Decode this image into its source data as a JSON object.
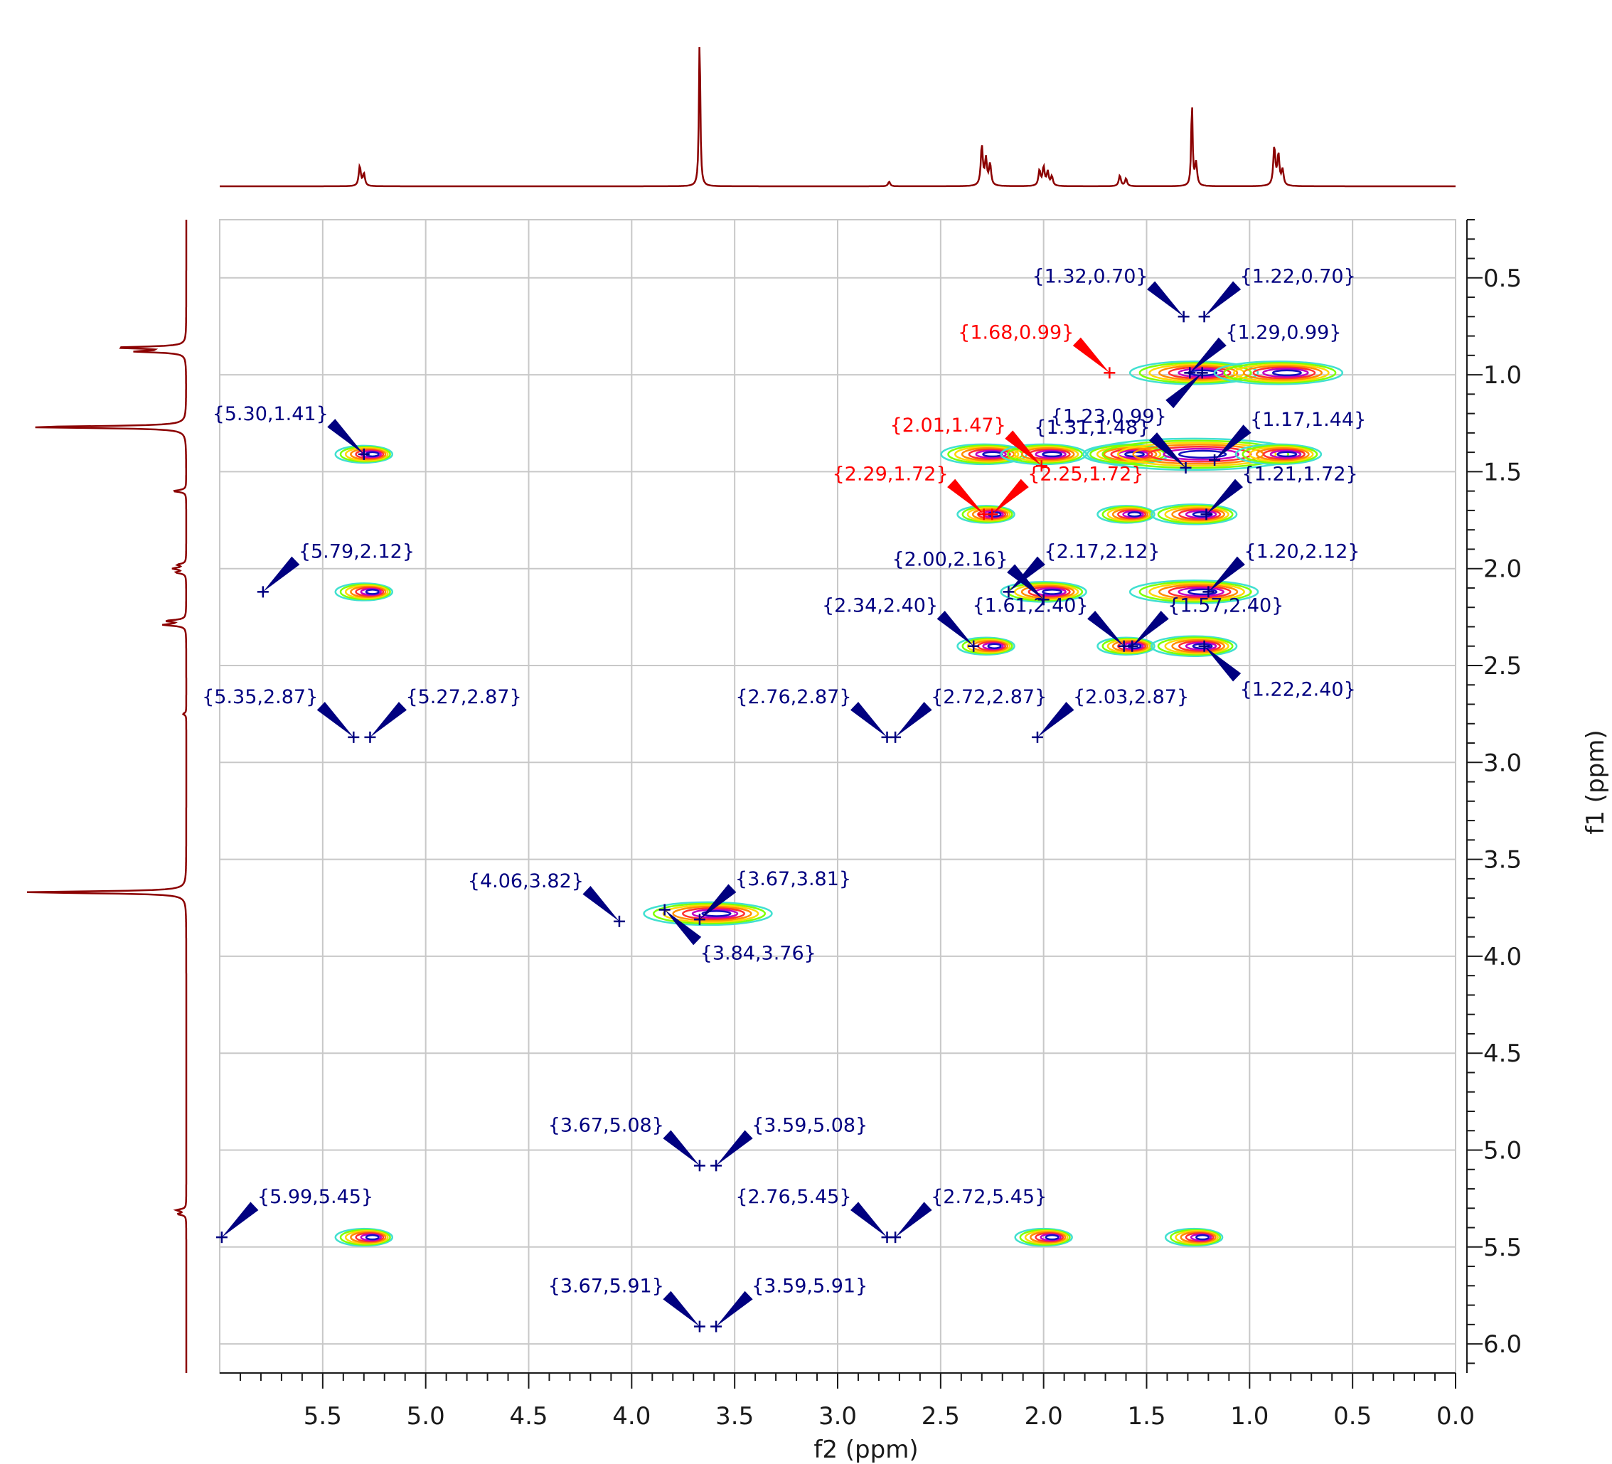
{
  "chart_data": {
    "type": "scatter",
    "subtype": "2D NMR contour plot",
    "xlabel": "f2 (ppm)",
    "ylabel": "f1 (ppm)",
    "xlim": [
      6.0,
      0.0
    ],
    "ylim": [
      0.2,
      6.15
    ],
    "x_ticks": [
      "5.5",
      "5.0",
      "4.5",
      "4.0",
      "3.5",
      "3.0",
      "2.5",
      "2.0",
      "1.5",
      "1.0",
      "0.5",
      "0.0"
    ],
    "y_ticks": [
      "0.5",
      "1.0",
      "1.5",
      "2.0",
      "2.5",
      "3.0",
      "3.5",
      "4.0",
      "4.5",
      "5.0",
      "5.5",
      "6.0"
    ],
    "grid": true,
    "colors": {
      "label_blue": "#000080",
      "label_red": "#ff0000",
      "projection": "#8b0000",
      "grid": "#c8c8c8"
    },
    "peak_labels": [
      {
        "label": "{1.32,0.70}",
        "x": 1.32,
        "y": 0.7,
        "color": "blue"
      },
      {
        "label": "{1.22,0.70}",
        "x": 1.22,
        "y": 0.7,
        "color": "blue"
      },
      {
        "label": "{1.68,0.99}",
        "x": 1.68,
        "y": 0.99,
        "color": "red"
      },
      {
        "label": "{1.29,0.99}",
        "x": 1.29,
        "y": 0.99,
        "color": "blue"
      },
      {
        "label": "{1.23,0.99}",
        "x": 1.23,
        "y": 0.99,
        "color": "blue"
      },
      {
        "label": "{5.30,1.41}",
        "x": 5.3,
        "y": 1.41,
        "color": "blue"
      },
      {
        "label": "{2.01,1.47}",
        "x": 2.01,
        "y": 1.47,
        "color": "red"
      },
      {
        "label": "{1.31,1.48}",
        "x": 1.31,
        "y": 1.48,
        "color": "blue"
      },
      {
        "label": "{1.17,1.44}",
        "x": 1.17,
        "y": 1.44,
        "color": "blue"
      },
      {
        "label": "{2.29,1.72}",
        "x": 2.29,
        "y": 1.72,
        "color": "red"
      },
      {
        "label": "{2.25,1.72}",
        "x": 2.25,
        "y": 1.72,
        "color": "red"
      },
      {
        "label": "{1.21,1.72}",
        "x": 1.21,
        "y": 1.72,
        "color": "blue"
      },
      {
        "label": "{5.79,2.12}",
        "x": 5.79,
        "y": 2.12,
        "color": "blue"
      },
      {
        "label": "{2.00,2.16}",
        "x": 2.0,
        "y": 2.16,
        "color": "blue"
      },
      {
        "label": "{2.17,2.12}",
        "x": 2.17,
        "y": 2.12,
        "color": "blue"
      },
      {
        "label": "{1.20,2.12}",
        "x": 1.2,
        "y": 2.12,
        "color": "blue"
      },
      {
        "label": "{2.34,2.40}",
        "x": 2.34,
        "y": 2.4,
        "color": "blue"
      },
      {
        "label": "{1.61,2.40}",
        "x": 1.61,
        "y": 2.4,
        "color": "blue"
      },
      {
        "label": "{1.57,2.40}",
        "x": 1.57,
        "y": 2.4,
        "color": "blue"
      },
      {
        "label": "{1.22,2.40}",
        "x": 1.22,
        "y": 2.4,
        "color": "blue"
      },
      {
        "label": "{5.35,2.87}",
        "x": 5.35,
        "y": 2.87,
        "color": "blue"
      },
      {
        "label": "{5.27,2.87}",
        "x": 5.27,
        "y": 2.87,
        "color": "blue"
      },
      {
        "label": "{2.76,2.87}",
        "x": 2.76,
        "y": 2.87,
        "color": "blue"
      },
      {
        "label": "{2.72,2.87}",
        "x": 2.72,
        "y": 2.87,
        "color": "blue"
      },
      {
        "label": "{2.03,2.87}",
        "x": 2.03,
        "y": 2.87,
        "color": "blue"
      },
      {
        "label": "{4.06,3.82}",
        "x": 4.06,
        "y": 3.82,
        "color": "blue"
      },
      {
        "label": "{3.67,3.81}",
        "x": 3.67,
        "y": 3.81,
        "color": "blue"
      },
      {
        "label": "{3.84,3.76}",
        "x": 3.84,
        "y": 3.76,
        "color": "blue"
      },
      {
        "label": "{3.67,5.08}",
        "x": 3.67,
        "y": 5.08,
        "color": "blue"
      },
      {
        "label": "{3.59,5.08}",
        "x": 3.59,
        "y": 5.08,
        "color": "blue"
      },
      {
        "label": "{5.99,5.45}",
        "x": 5.99,
        "y": 5.45,
        "color": "blue"
      },
      {
        "label": "{2.76,5.45}",
        "x": 2.76,
        "y": 5.45,
        "color": "blue"
      },
      {
        "label": "{2.72,5.45}",
        "x": 2.72,
        "y": 5.45,
        "color": "blue"
      },
      {
        "label": "{3.67,5.91}",
        "x": 3.67,
        "y": 5.91,
        "color": "blue"
      },
      {
        "label": "{3.59,5.91}",
        "x": 3.59,
        "y": 5.91,
        "color": "blue"
      }
    ],
    "contours": [
      {
        "x": 1.27,
        "y": 0.99,
        "size": "large"
      },
      {
        "x": 0.86,
        "y": 0.99,
        "size": "large"
      },
      {
        "x": 5.3,
        "y": 1.41,
        "size": "small"
      },
      {
        "x": 2.29,
        "y": 1.41,
        "size": "medium"
      },
      {
        "x": 2.0,
        "y": 1.41,
        "size": "medium"
      },
      {
        "x": 1.6,
        "y": 1.41,
        "size": "medium"
      },
      {
        "x": 1.27,
        "y": 1.41,
        "size": "xlarge"
      },
      {
        "x": 0.86,
        "y": 1.41,
        "size": "medium"
      },
      {
        "x": 2.28,
        "y": 1.72,
        "size": "small"
      },
      {
        "x": 1.6,
        "y": 1.72,
        "size": "small"
      },
      {
        "x": 1.27,
        "y": 1.72,
        "size": "medium"
      },
      {
        "x": 5.3,
        "y": 2.12,
        "size": "small"
      },
      {
        "x": 2.0,
        "y": 2.12,
        "size": "medium"
      },
      {
        "x": 1.27,
        "y": 2.12,
        "size": "large"
      },
      {
        "x": 2.28,
        "y": 2.4,
        "size": "small"
      },
      {
        "x": 1.6,
        "y": 2.4,
        "size": "small"
      },
      {
        "x": 1.27,
        "y": 2.4,
        "size": "medium"
      },
      {
        "x": 3.63,
        "y": 3.78,
        "size": "large"
      },
      {
        "x": 5.3,
        "y": 5.45,
        "size": "small"
      },
      {
        "x": 2.0,
        "y": 5.45,
        "size": "small"
      },
      {
        "x": 1.27,
        "y": 5.45,
        "size": "small"
      }
    ],
    "top_projection_peaks": [
      {
        "x": 5.32,
        "h": 0.13
      },
      {
        "x": 5.3,
        "h": 0.08
      },
      {
        "x": 3.67,
        "h": 1.0
      },
      {
        "x": 2.75,
        "h": 0.03
      },
      {
        "x": 2.3,
        "h": 0.26
      },
      {
        "x": 2.28,
        "h": 0.17
      },
      {
        "x": 2.26,
        "h": 0.14
      },
      {
        "x": 2.02,
        "h": 0.1
      },
      {
        "x": 2.0,
        "h": 0.12
      },
      {
        "x": 1.98,
        "h": 0.09
      },
      {
        "x": 1.96,
        "h": 0.06
      },
      {
        "x": 1.63,
        "h": 0.07
      },
      {
        "x": 1.6,
        "h": 0.05
      },
      {
        "x": 1.28,
        "h": 0.55
      },
      {
        "x": 1.26,
        "h": 0.15
      },
      {
        "x": 0.88,
        "h": 0.25
      },
      {
        "x": 0.86,
        "h": 0.2
      },
      {
        "x": 0.84,
        "h": 0.1
      }
    ]
  }
}
